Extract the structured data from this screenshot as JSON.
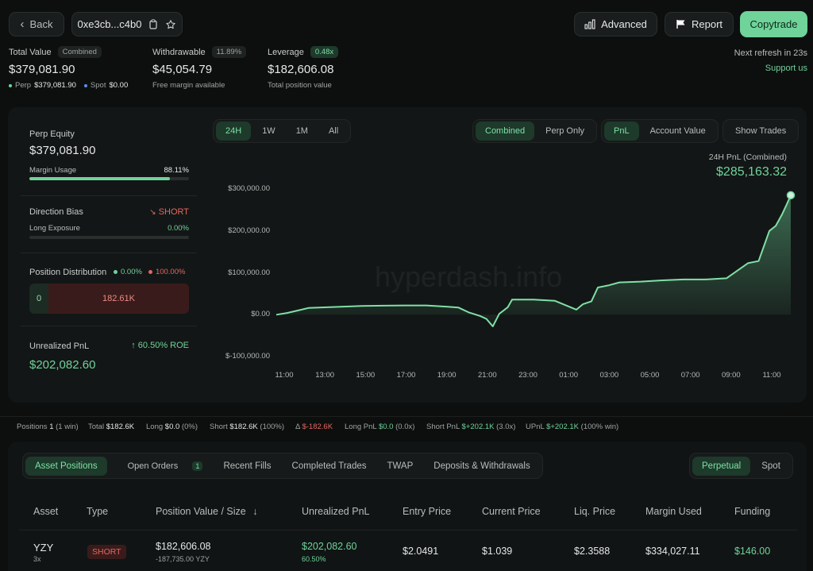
{
  "header": {
    "back_label": "Back",
    "address": "0xe3cb...c4b0",
    "advanced_label": "Advanced",
    "report_label": "Report",
    "copytrade_label": "Copytrade",
    "refresh_text": "Next refresh in 23s",
    "support_label": "Support us"
  },
  "stats": {
    "total_value_label": "Total Value",
    "total_value_badge": "Combined",
    "total_value": "$379,081.90",
    "perp_label": "Perp",
    "perp_value": "$379,081.90",
    "spot_label": "Spot",
    "spot_value": "$0.00",
    "withdrawable_label": "Withdrawable",
    "withdrawable_badge": "11.89%",
    "withdrawable_value": "$45,054.79",
    "withdrawable_sub": "Free margin available",
    "leverage_label": "Leverage",
    "leverage_badge": "0.48x",
    "leverage_value": "$182,606.08",
    "leverage_sub": "Total position value"
  },
  "left_panel": {
    "perp_equity_label": "Perp Equity",
    "perp_equity_value": "$379,081.90",
    "margin_usage_label": "Margin Usage",
    "margin_usage_value": "88.11%",
    "margin_usage_fraction": 0.8811,
    "direction_bias_label": "Direction Bias",
    "direction_bias_value": "SHORT",
    "long_exposure_label": "Long Exposure",
    "long_exposure_value": "0.00%",
    "position_distribution_label": "Position Distribution",
    "dist_long_pct": "0.00%",
    "dist_short_pct": "100.00%",
    "dist_long_value": "0",
    "dist_short_value": "182.61K",
    "unrealized_pnl_label": "Unrealized PnL",
    "roe_value": "60.50% ROE",
    "unrealized_pnl_value": "$202,082.60"
  },
  "chart_controls": {
    "ranges": [
      "24H",
      "1W",
      "1M",
      "All"
    ],
    "modes": [
      "Combined",
      "Perp Only"
    ],
    "metrics": [
      "PnL",
      "Account Value"
    ],
    "show_trades_label": "Show Trades",
    "pnl_title": "24H PnL (Combined)",
    "pnl_value": "$285,163.32",
    "watermark": "hyperdash.info"
  },
  "chart_data": {
    "type": "area",
    "title": "24H PnL (Combined)",
    "ylim": [
      -100000,
      300000
    ],
    "y_ticks": [
      "$300,000.00",
      "$200,000.00",
      "$100,000.00",
      "$0.00",
      "$-100,000.00"
    ],
    "y_tick_values": [
      300000,
      200000,
      100000,
      0,
      -100000
    ],
    "x_ticks": [
      "11:00",
      "13:00",
      "15:00",
      "17:00",
      "19:00",
      "21:00",
      "23:00",
      "01:00",
      "03:00",
      "05:00",
      "07:00",
      "09:00",
      "11:00"
    ],
    "x": [
      0,
      0.5,
      1,
      1.5,
      2,
      3,
      4,
      5,
      6,
      7,
      8,
      8.5,
      9,
      9.5,
      9.8,
      10.1,
      10.4,
      10.8,
      11,
      12,
      13,
      14,
      14.3,
      14.7,
      15,
      15.5,
      16,
      17,
      18,
      19,
      20,
      21,
      22,
      22.5,
      23,
      23.3,
      23.6,
      23.8,
      24
    ],
    "values": [
      0,
      4000,
      10000,
      16000,
      17000,
      19000,
      21000,
      21500,
      22000,
      22000,
      19000,
      17000,
      5000,
      -3000,
      -10000,
      -28000,
      2000,
      18000,
      36000,
      36000,
      33000,
      12000,
      25000,
      32000,
      65000,
      70000,
      77000,
      79000,
      82000,
      84000,
      84000,
      87000,
      123000,
      128000,
      200000,
      212000,
      240000,
      262000,
      285163
    ]
  },
  "summary": {
    "positions_label": "Positions",
    "positions_value": "1",
    "positions_sub": "(1 win)",
    "total_label": "Total",
    "total_value": "$182.6K",
    "long_label": "Long",
    "long_value": "$0.0",
    "long_sub": "(0%)",
    "short_label": "Short",
    "short_value": "$182.6K",
    "short_sub": "(100%)",
    "delta_label": "Δ",
    "delta_value": "$-182.6K",
    "long_pnl_label": "Long PnL",
    "long_pnl_value": "$0.0",
    "long_pnl_sub": "(0.0x)",
    "short_pnl_label": "Short PnL",
    "short_pnl_value": "$+202.1K",
    "short_pnl_sub": "(3.0x)",
    "upnl_label": "UPnL",
    "upnl_value": "$+202.1K",
    "upnl_sub": "(100% win)"
  },
  "tabs": {
    "items": [
      "Asset Positions",
      "Open Orders",
      "Recent Fills",
      "Completed Trades",
      "TWAP",
      "Deposits & Withdrawals"
    ],
    "open_orders_count": "1",
    "market_types": [
      "Perpetual",
      "Spot"
    ]
  },
  "table": {
    "columns": [
      "Asset",
      "Type",
      "Position Value / Size",
      "Unrealized PnL",
      "Entry Price",
      "Current Price",
      "Liq. Price",
      "Margin Used",
      "Funding"
    ],
    "sort_arrow": "↓",
    "row": {
      "asset": "YZY",
      "leverage": "3x",
      "type": "SHORT",
      "position_value": "$182,606.08",
      "size": "-187,735.00 YZY",
      "unrealized_pnl": "$202,082.60",
      "pnl_pct": "60.50%",
      "entry_price": "$2.0491",
      "current_price": "$1.039",
      "liq_price": "$2.3588",
      "margin_used": "$334,027.11",
      "funding": "$146.00"
    }
  },
  "colors": {
    "accent": "#6fd39a",
    "negative": "#e5675f",
    "background": "#0d0f0f"
  }
}
